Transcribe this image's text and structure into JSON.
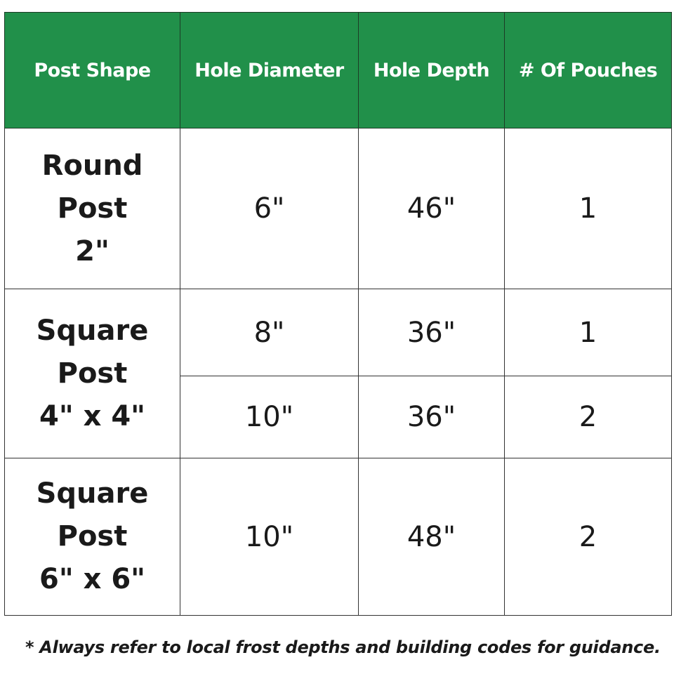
{
  "headers": [
    "Post Shape",
    "Hole Diameter",
    "Hole Depth",
    "# Of Pouches"
  ],
  "colors": {
    "header_bg": "#21904a",
    "header_text": "#ffffff"
  },
  "rows": [
    {
      "shape": [
        "Round",
        "Post",
        "2\""
      ],
      "diameter": "6\"",
      "depth": "46\"",
      "pouches": "1"
    },
    {
      "shape": [
        "Square",
        "Post",
        "4\" x 4\""
      ],
      "diameter": "8\"",
      "depth": "36\"",
      "pouches": "1"
    },
    {
      "diameter": "10\"",
      "depth": "36\"",
      "pouches": "2"
    },
    {
      "shape": [
        "Square",
        "Post",
        "6\" x 6\""
      ],
      "diameter": "10\"",
      "depth": "48\"",
      "pouches": "2"
    }
  ],
  "footnote": "* Always refer to local frost depths and building codes for guidance."
}
